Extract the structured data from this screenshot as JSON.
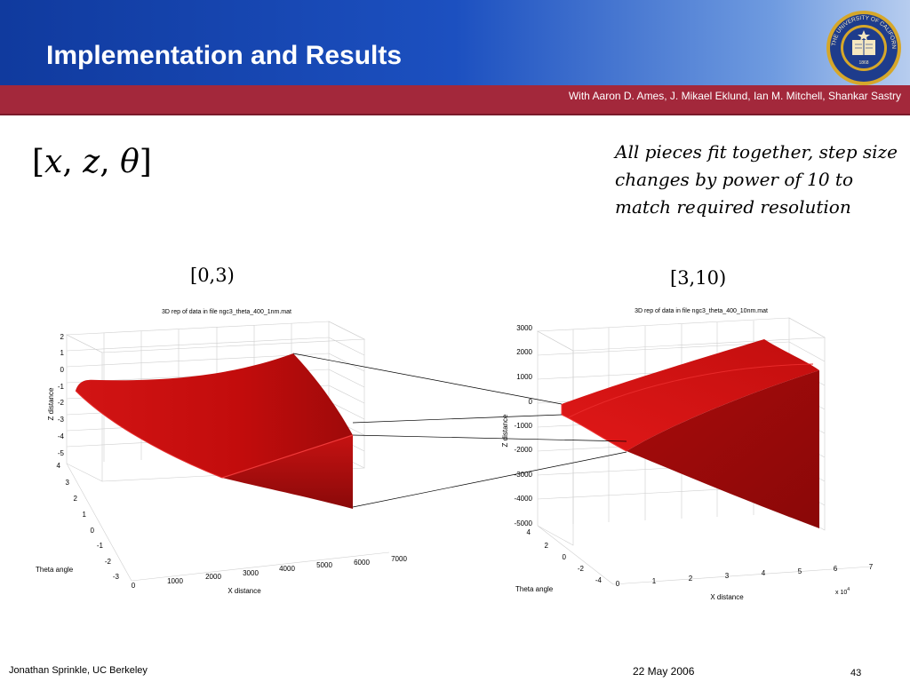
{
  "slide": {
    "title": "Implementation and Results",
    "authors": "With Aaron D. Ames, J. Mikael Eklund, Ian M. Mitchell, Shankar Sastry",
    "note": "All pieces fit together, step size changes by power of 10 to match required resolution",
    "range_left": "[0,3)",
    "range_right": "[3,10)",
    "footer": {
      "author": "Jonathan Sprinkle, UC Berkeley",
      "date": "22 May 2006",
      "page": "43"
    },
    "seal": {
      "text": "THE UNIVERSITY OF CALIFORNIA",
      "year": "1868"
    }
  },
  "formula": {
    "open": "[",
    "v1": "x",
    "v2": "z",
    "v3": "θ",
    "sep": ", ",
    "close": "]"
  },
  "plot_left": {
    "title": "3D rep of data in file ngc3_theta_400_1nm.mat",
    "xlabel": "X distance",
    "ylabel": "Theta angle",
    "zlabel": "Z distance",
    "z_ticks": [
      "2",
      "1",
      "0",
      "-1",
      "-2",
      "-3",
      "-4",
      "-5"
    ],
    "theta_ticks": [
      "4",
      "3",
      "2",
      "1",
      "0",
      "-1",
      "-2",
      "-3"
    ],
    "x_ticks": [
      "0",
      "1000",
      "2000",
      "3000",
      "4000",
      "5000",
      "6000",
      "7000"
    ]
  },
  "plot_right": {
    "title": "3D rep of data in file ngc3_theta_400_10nm.mat",
    "xlabel": "X distance",
    "ylabel": "Theta angle",
    "zlabel": "Z distance",
    "z_ticks": [
      "3000",
      "2000",
      "1000",
      "0",
      "-1000",
      "-2000",
      "-3000",
      "-4000",
      "-5000"
    ],
    "theta_ticks": [
      "4",
      "2",
      "0",
      "-2",
      "-4"
    ],
    "x_ticks": [
      "0",
      "1",
      "2",
      "3",
      "4",
      "5",
      "6",
      "7"
    ],
    "x_multiplier": "x 10",
    "x_multiplier_exp": "4"
  },
  "colors": {
    "header_blue": "#1c50c0",
    "bar_red": "#a3283b",
    "surface_red": "#cc0f0f",
    "seal_gold": "#d6a72a",
    "seal_blue": "#1e3c8c"
  }
}
